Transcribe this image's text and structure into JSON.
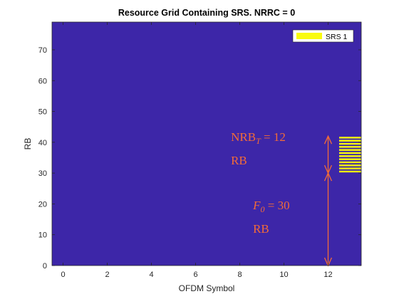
{
  "chart_data": {
    "type": "heatmap",
    "title": "Resource Grid Containing SRS. NRRC = 0",
    "xlabel": "OFDM Symbol",
    "ylabel": "RB",
    "xlim": [
      -0.5,
      13.5
    ],
    "ylim": [
      0,
      79
    ],
    "xticks": [
      0,
      2,
      4,
      6,
      8,
      10,
      12
    ],
    "yticks": [
      0,
      10,
      20,
      30,
      40,
      50,
      60,
      70
    ],
    "grid": false,
    "background_color": "#3d26a8",
    "srs_color": "#f9fb0e",
    "annotation_color": "#f26b38",
    "srs": {
      "symbol": 13,
      "rb_start": 30,
      "rb_count": 12,
      "rb_stripes": [
        30,
        31,
        32,
        33,
        34,
        35,
        36,
        37,
        38,
        39,
        40,
        41
      ]
    },
    "legend": {
      "placement": "top-right",
      "entries": [
        {
          "label": "SRS 1",
          "color": "#f9fb0e"
        }
      ]
    },
    "annotations": [
      {
        "id": "nrb",
        "main": "NRB",
        "sub": "T",
        "rest": " = 12",
        "second_line": "RB",
        "x": 7.6,
        "y_line1": 40.4,
        "y_line2": 32.8
      },
      {
        "id": "f0",
        "main": "F",
        "sub": "0",
        "rest": " = 30",
        "second_line": "RB",
        "x": 8.6,
        "y_line1": 18.2,
        "y_line2": 10.6
      }
    ],
    "arrows": [
      {
        "id": "nrb-arrow",
        "x": 12,
        "y_from": 30,
        "y_to": 42
      },
      {
        "id": "f0-arrow",
        "x": 12,
        "y_from": 0,
        "y_to": 30
      }
    ]
  }
}
